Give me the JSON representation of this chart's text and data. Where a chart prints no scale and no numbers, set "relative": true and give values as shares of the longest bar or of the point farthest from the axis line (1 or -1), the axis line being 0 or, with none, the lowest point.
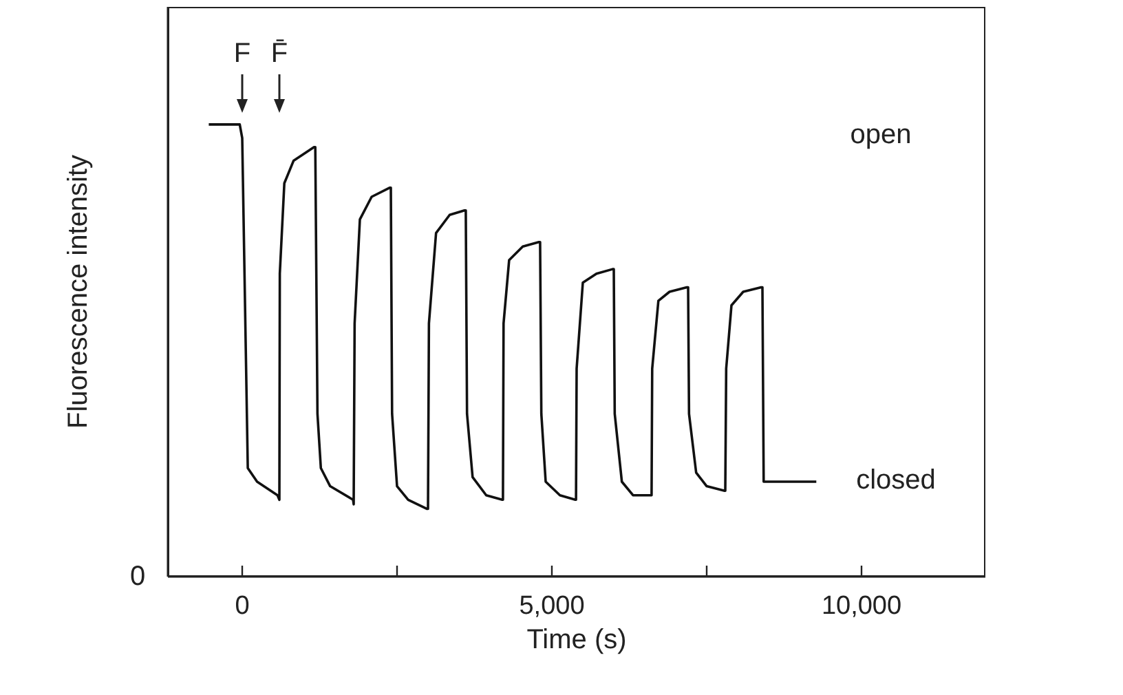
{
  "chart_data": {
    "type": "line",
    "xlabel": "Time (s)",
    "ylabel": "Fluorescence intensity",
    "relative": true,
    "xlim": [
      -1200,
      12000
    ],
    "xticks": [
      {
        "value": 0,
        "label": "0"
      },
      {
        "value": 2500,
        "label": null
      },
      {
        "value": 5000,
        "label": "5,000"
      },
      {
        "value": 7500,
        "label": null
      },
      {
        "value": 10000,
        "label": "10,000"
      }
    ],
    "series": [
      {
        "color": "#111111",
        "x": [
          -540,
          -40,
          0,
          90,
          240,
          570,
          600,
          607,
          680,
          830,
          1160,
          1180,
          1215,
          1270,
          1420,
          1790,
          1800,
          1815,
          1900,
          2090,
          2380,
          2400,
          2420,
          2500,
          2680,
          2980,
          3000,
          3015,
          3130,
          3350,
          3590,
          3610,
          3630,
          3720,
          3940,
          4200,
          4210,
          4220,
          4310,
          4530,
          4790,
          4810,
          4830,
          4900,
          5130,
          5380,
          5390,
          5400,
          5500,
          5720,
          5980,
          6000,
          6015,
          6130,
          6310,
          6590,
          6610,
          6620,
          6720,
          6900,
          7180,
          7200,
          7215,
          7330,
          7500,
          7790,
          7800,
          7815,
          7900,
          8090,
          8380,
          8400,
          8420,
          9270
        ],
        "values": [
          1.0,
          1.0,
          0.97,
          0.24,
          0.21,
          0.18,
          0.17,
          0.67,
          0.87,
          0.92,
          0.95,
          0.95,
          0.36,
          0.24,
          0.2,
          0.17,
          0.16,
          0.56,
          0.79,
          0.84,
          0.86,
          0.86,
          0.36,
          0.2,
          0.17,
          0.15,
          0.15,
          0.56,
          0.76,
          0.8,
          0.81,
          0.81,
          0.36,
          0.22,
          0.18,
          0.17,
          0.17,
          0.56,
          0.7,
          0.73,
          0.74,
          0.74,
          0.36,
          0.21,
          0.18,
          0.17,
          0.17,
          0.46,
          0.65,
          0.67,
          0.68,
          0.68,
          0.36,
          0.21,
          0.18,
          0.18,
          0.18,
          0.46,
          0.61,
          0.63,
          0.64,
          0.64,
          0.36,
          0.23,
          0.2,
          0.19,
          0.19,
          0.46,
          0.6,
          0.63,
          0.64,
          0.64,
          0.21,
          0.21
        ]
      }
    ],
    "annotations": [
      "F",
      "F̄",
      "open",
      "closed",
      "0"
    ]
  }
}
